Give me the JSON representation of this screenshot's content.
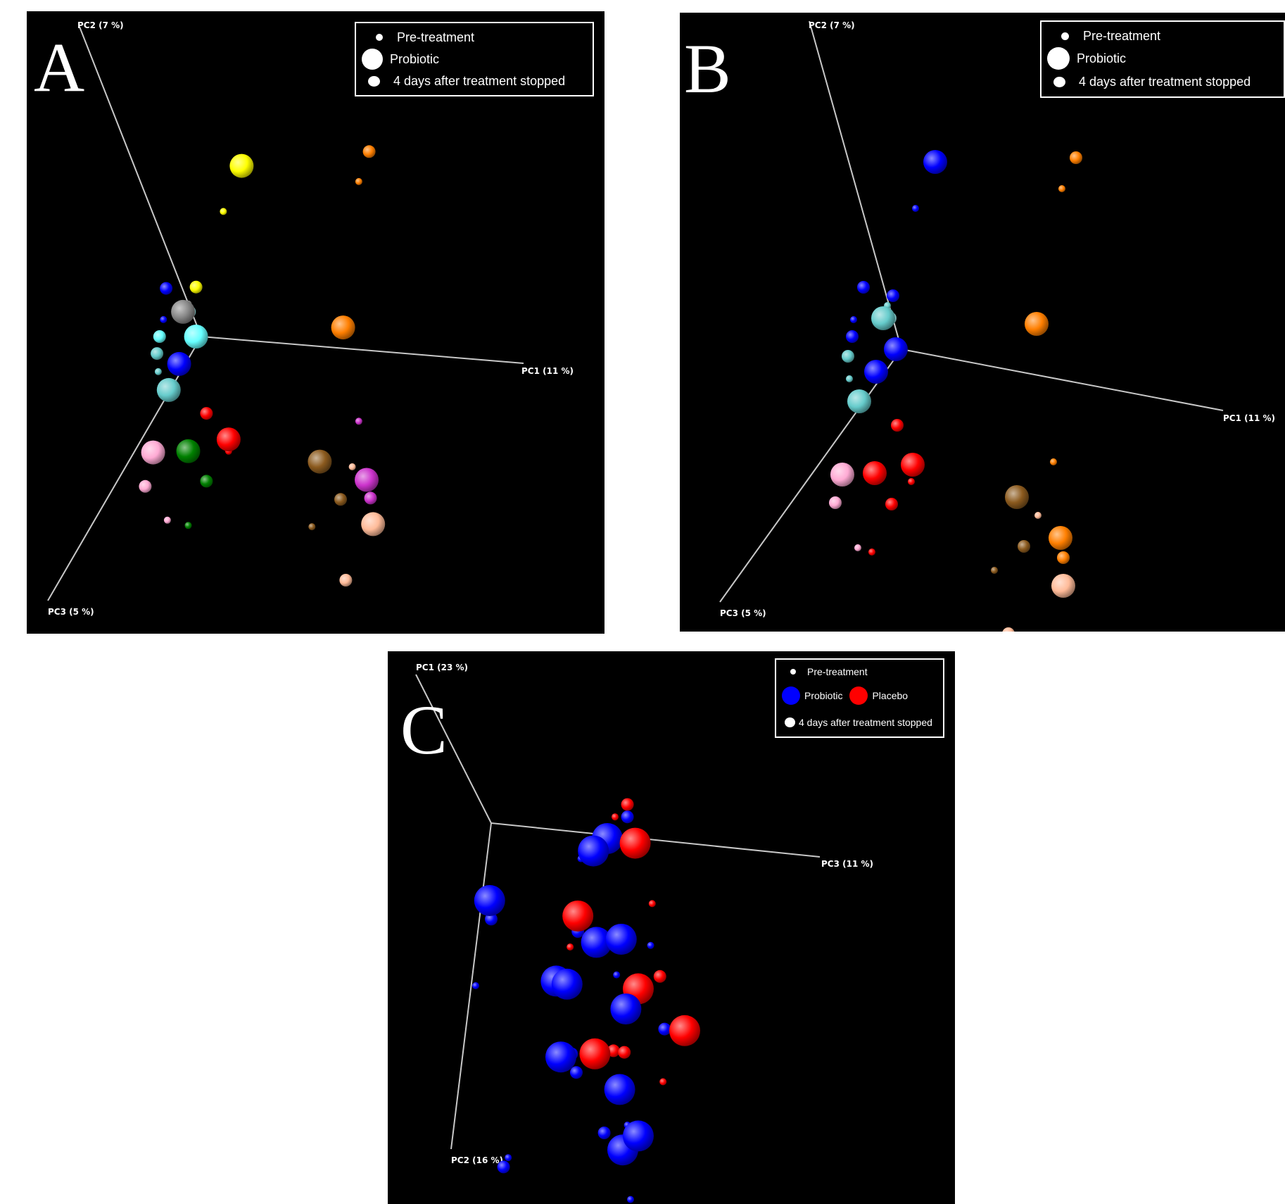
{
  "panels": [
    {
      "letter": "A",
      "legend": [
        "Pre-treatment",
        "Probiotic",
        "4 days after treatment stopped"
      ],
      "axes": {
        "x": "PC1 (11 %)",
        "y": "PC2 (7 %)",
        "z": "PC3 (5 %)"
      }
    },
    {
      "letter": "B",
      "legend": [
        "Pre-treatment",
        "Probiotic",
        "4 days after treatment stopped"
      ],
      "axes": {
        "x": "PC1 (11 %)",
        "y": "PC2 (7 %)",
        "z": "PC3 (5 %)"
      }
    },
    {
      "letter": "C",
      "legend": [
        "Pre-treatment",
        "Probiotic",
        "Placebo",
        "4 days after treatment stopped"
      ],
      "axes": {
        "x": "PC3 (11 %)",
        "y": "PC1 (23 %)",
        "z": "PC2 (16 %)"
      }
    }
  ],
  "chart_data": [
    {
      "type": "scatter",
      "title": "A",
      "projection": "3D PCoA",
      "axes": [
        "PC1 (11 %)",
        "PC2 (7 %)",
        "PC3 (5 %)"
      ],
      "size_encoding": {
        "small": "Pre-treatment",
        "large": "Probiotic",
        "medium": "4 days after treatment stopped"
      },
      "grid": false,
      "legend_position": "top-right",
      "points": [
        {
          "x": 0.31,
          "y": 1.31,
          "s": 3,
          "c": "#ffff00"
        },
        {
          "x": 0.17,
          "y": 0.96,
          "s": 1,
          "c": "#ffff00"
        },
        {
          "x": -0.04,
          "y": 0.38,
          "s": 2,
          "c": "#ffff00"
        },
        {
          "x": 1.29,
          "y": 1.42,
          "s": 2,
          "c": "#ff7f00"
        },
        {
          "x": 1.21,
          "y": 1.19,
          "s": 1,
          "c": "#ff7f00"
        },
        {
          "x": 1.09,
          "y": 0.07,
          "s": 3,
          "c": "#ff7f00"
        },
        {
          "x": -0.27,
          "y": 0.37,
          "s": 2,
          "c": "#0000ff"
        },
        {
          "x": -0.29,
          "y": 0.13,
          "s": 1,
          "c": "#0000ff"
        },
        {
          "x": -0.17,
          "y": -0.21,
          "s": 3,
          "c": "#0000ff"
        },
        {
          "x": -0.14,
          "y": 0.19,
          "s": 3,
          "c": "#888888"
        },
        {
          "x": -0.1,
          "y": 0.25,
          "s": 1,
          "c": "#888888"
        },
        {
          "x": -0.09,
          "y": 0.19,
          "s": 2,
          "c": "#aaffff"
        },
        {
          "x": -0.04,
          "y": 0.0,
          "s": 3,
          "c": "#66ffff"
        },
        {
          "x": -0.32,
          "y": 0.0,
          "s": 2,
          "c": "#66ffff"
        },
        {
          "x": -0.34,
          "y": -0.13,
          "s": 2,
          "c": "#66cccc"
        },
        {
          "x": -0.33,
          "y": -0.27,
          "s": 1,
          "c": "#66cccc"
        },
        {
          "x": -0.25,
          "y": -0.41,
          "s": 3,
          "c": "#66cccc"
        },
        {
          "x": 0.04,
          "y": -0.59,
          "s": 2,
          "c": "#ff0000"
        },
        {
          "x": 0.21,
          "y": -0.79,
          "s": 3,
          "c": "#ff0000"
        },
        {
          "x": 0.21,
          "y": -0.88,
          "s": 1,
          "c": "#ff0000"
        },
        {
          "x": -0.1,
          "y": -0.88,
          "s": 3,
          "c": "#008000"
        },
        {
          "x": 0.04,
          "y": -1.11,
          "s": 2,
          "c": "#008000"
        },
        {
          "x": -0.1,
          "y": -1.45,
          "s": 1,
          "c": "#008000"
        },
        {
          "x": -0.37,
          "y": -0.89,
          "s": 3,
          "c": "#ffaad4"
        },
        {
          "x": -0.43,
          "y": -1.15,
          "s": 2,
          "c": "#ffaad4"
        },
        {
          "x": -0.26,
          "y": -1.41,
          "s": 1,
          "c": "#ffaad4"
        },
        {
          "x": 0.91,
          "y": -0.96,
          "s": 3,
          "c": "#8b5a1e"
        },
        {
          "x": 1.07,
          "y": -1.25,
          "s": 2,
          "c": "#8b5a1e"
        },
        {
          "x": 0.85,
          "y": -1.46,
          "s": 1,
          "c": "#8b5a1e"
        },
        {
          "x": 1.21,
          "y": -0.65,
          "s": 1,
          "c": "#cc33cc"
        },
        {
          "x": 1.27,
          "y": -1.1,
          "s": 3,
          "c": "#cc33cc"
        },
        {
          "x": 1.3,
          "y": -1.24,
          "s": 2,
          "c": "#cc33cc"
        },
        {
          "x": 1.16,
          "y": -1.0,
          "s": 1,
          "c": "#ffbb99"
        },
        {
          "x": 1.32,
          "y": -1.44,
          "s": 3,
          "c": "#ffbb99"
        },
        {
          "x": 1.11,
          "y": -1.87,
          "s": 2,
          "c": "#ffbb99"
        }
      ]
    },
    {
      "type": "scatter",
      "title": "B",
      "projection": "3D PCoA",
      "axes": [
        "PC1 (11 %)",
        "PC2 (7 %)",
        "PC3 (5 %)"
      ],
      "size_encoding": {
        "small": "Pre-treatment",
        "large": "Probiotic",
        "medium": "4 days after treatment stopped"
      },
      "grid": false,
      "legend_position": "top-right",
      "points": [
        {
          "x": 0.24,
          "y": 1.33,
          "s": 3,
          "c": "#0000ff"
        },
        {
          "x": 0.1,
          "y": 1.0,
          "s": 1,
          "c": "#0000ff"
        },
        {
          "x": -0.27,
          "y": 0.44,
          "s": 2,
          "c": "#0000ff"
        },
        {
          "x": -0.06,
          "y": 0.38,
          "s": 2,
          "c": "#0000ff"
        },
        {
          "x": -0.34,
          "y": 0.21,
          "s": 1,
          "c": "#0000ff"
        },
        {
          "x": -0.35,
          "y": 0.09,
          "s": 2,
          "c": "#0000ff"
        },
        {
          "x": -0.18,
          "y": -0.16,
          "s": 3,
          "c": "#0000ff"
        },
        {
          "x": -0.04,
          "y": 0.0,
          "s": 3,
          "c": "#0000ff"
        },
        {
          "x": -0.13,
          "y": 0.22,
          "s": 3,
          "c": "#66cccc"
        },
        {
          "x": -0.1,
          "y": 0.31,
          "s": 1,
          "c": "#66cccc"
        },
        {
          "x": -0.08,
          "y": 0.22,
          "s": 2,
          "c": "#aaffff"
        },
        {
          "x": -0.38,
          "y": -0.05,
          "s": 2,
          "c": "#66cccc"
        },
        {
          "x": -0.37,
          "y": -0.21,
          "s": 1,
          "c": "#66cccc"
        },
        {
          "x": -0.3,
          "y": -0.37,
          "s": 3,
          "c": "#66cccc"
        },
        {
          "x": 1.24,
          "y": 1.36,
          "s": 2,
          "c": "#ff7f00"
        },
        {
          "x": 1.14,
          "y": 1.14,
          "s": 1,
          "c": "#ff7f00"
        },
        {
          "x": 0.96,
          "y": 0.18,
          "s": 3,
          "c": "#ff7f00"
        },
        {
          "x": -0.03,
          "y": -0.54,
          "s": 2,
          "c": "#ff0000"
        },
        {
          "x": 0.08,
          "y": -0.82,
          "s": 3,
          "c": "#ff0000"
        },
        {
          "x": 0.07,
          "y": -0.94,
          "s": 1,
          "c": "#ff0000"
        },
        {
          "x": -0.19,
          "y": -0.88,
          "s": 3,
          "c": "#ff0000"
        },
        {
          "x": -0.07,
          "y": -1.1,
          "s": 2,
          "c": "#ff0000"
        },
        {
          "x": -0.21,
          "y": -1.44,
          "s": 1,
          "c": "#ff0000"
        },
        {
          "x": -0.42,
          "y": -0.89,
          "s": 3,
          "c": "#ffaad4"
        },
        {
          "x": -0.47,
          "y": -1.09,
          "s": 2,
          "c": "#ffaad4"
        },
        {
          "x": -0.31,
          "y": -1.41,
          "s": 1,
          "c": "#ffaad4"
        },
        {
          "x": 0.82,
          "y": -1.05,
          "s": 3,
          "c": "#8b5a1e"
        },
        {
          "x": 0.87,
          "y": -1.4,
          "s": 2,
          "c": "#8b5a1e"
        },
        {
          "x": 0.66,
          "y": -1.57,
          "s": 1,
          "c": "#8b5a1e"
        },
        {
          "x": 1.08,
          "y": -0.8,
          "s": 1,
          "c": "#ff7f00"
        },
        {
          "x": 1.13,
          "y": -1.34,
          "s": 3,
          "c": "#ff7f00"
        },
        {
          "x": 1.15,
          "y": -1.48,
          "s": 2,
          "c": "#ff7f00"
        },
        {
          "x": 0.97,
          "y": -1.18,
          "s": 1,
          "c": "#ffbb99"
        },
        {
          "x": 1.15,
          "y": -1.68,
          "s": 3,
          "c": "#ffbb99"
        },
        {
          "x": 0.76,
          "y": -2.02,
          "s": 2,
          "c": "#ffbb99"
        }
      ]
    },
    {
      "type": "scatter",
      "title": "C",
      "projection": "3D PCoA",
      "axes": [
        "PC3 (11 %)",
        "PC1 (23 %)",
        "PC2 (16 %)"
      ],
      "groups": [
        "Probiotic",
        "Placebo"
      ],
      "size_encoding": {
        "small": "Pre-treatment",
        "large": "Probiotic / Placebo",
        "medium": "4 days after treatment stopped"
      },
      "grid": false,
      "legend_position": "top-right",
      "points": [
        {
          "x": -0.01,
          "y": -0.5,
          "s": 3,
          "c": "#0000ff"
        },
        {
          "x": 0.0,
          "y": -0.62,
          "s": 2,
          "c": "#0000ff"
        },
        {
          "x": -0.1,
          "y": -1.05,
          "s": 1,
          "c": "#0000ff"
        },
        {
          "x": 0.88,
          "y": 0.12,
          "s": 2,
          "c": "#ff0000"
        },
        {
          "x": 0.8,
          "y": 0.04,
          "s": 1,
          "c": "#ff0000"
        },
        {
          "x": 0.88,
          "y": 0.04,
          "s": 2,
          "c": "#0000ff"
        },
        {
          "x": 0.75,
          "y": -0.1,
          "s": 3,
          "c": "#0000ff"
        },
        {
          "x": 0.93,
          "y": -0.13,
          "s": 3,
          "c": "#ff0000"
        },
        {
          "x": 0.66,
          "y": -0.18,
          "s": 3,
          "c": "#0000ff"
        },
        {
          "x": 0.58,
          "y": -0.23,
          "s": 1,
          "c": "#0000ff"
        },
        {
          "x": 0.56,
          "y": -0.6,
          "s": 3,
          "c": "#ff0000"
        },
        {
          "x": 0.56,
          "y": -0.7,
          "s": 2,
          "c": "#0000ff"
        },
        {
          "x": 0.51,
          "y": -0.8,
          "s": 1,
          "c": "#ff0000"
        },
        {
          "x": 0.68,
          "y": -0.77,
          "s": 3,
          "c": "#0000ff"
        },
        {
          "x": 0.84,
          "y": -0.75,
          "s": 3,
          "c": "#0000ff"
        },
        {
          "x": 1.04,
          "y": -0.52,
          "s": 1,
          "c": "#ff0000"
        },
        {
          "x": 1.03,
          "y": -0.79,
          "s": 1,
          "c": "#0000ff"
        },
        {
          "x": 0.42,
          "y": -1.02,
          "s": 3,
          "c": "#0000ff"
        },
        {
          "x": 0.49,
          "y": -1.04,
          "s": 3,
          "c": "#0000ff"
        },
        {
          "x": 0.81,
          "y": -0.98,
          "s": 1,
          "c": "#0000ff"
        },
        {
          "x": 0.95,
          "y": -1.07,
          "s": 3,
          "c": "#ff0000"
        },
        {
          "x": 0.87,
          "y": -1.2,
          "s": 3,
          "c": "#0000ff"
        },
        {
          "x": 1.09,
          "y": -0.99,
          "s": 2,
          "c": "#ff0000"
        },
        {
          "x": 1.25,
          "y": -1.34,
          "s": 3,
          "c": "#ff0000"
        },
        {
          "x": 1.12,
          "y": -1.33,
          "s": 2,
          "c": "#0000ff"
        },
        {
          "x": 0.45,
          "y": -1.51,
          "s": 3,
          "c": "#0000ff"
        },
        {
          "x": 0.52,
          "y": -1.49,
          "s": 2,
          "c": "#0000ff"
        },
        {
          "x": 0.67,
          "y": -1.49,
          "s": 3,
          "c": "#ff0000"
        },
        {
          "x": 0.79,
          "y": -1.47,
          "s": 2,
          "c": "#ff0000"
        },
        {
          "x": 0.86,
          "y": -1.48,
          "s": 2,
          "c": "#ff0000"
        },
        {
          "x": 0.55,
          "y": -1.61,
          "s": 2,
          "c": "#0000ff"
        },
        {
          "x": 0.83,
          "y": -1.72,
          "s": 3,
          "c": "#0000ff"
        },
        {
          "x": 1.11,
          "y": -1.67,
          "s": 1,
          "c": "#ff0000"
        },
        {
          "x": 0.73,
          "y": -2.0,
          "s": 2,
          "c": "#0000ff"
        },
        {
          "x": 0.85,
          "y": -2.11,
          "s": 3,
          "c": "#0000ff"
        },
        {
          "x": 0.95,
          "y": -2.02,
          "s": 3,
          "c": "#0000ff"
        },
        {
          "x": 0.88,
          "y": -1.95,
          "s": 1,
          "c": "#0000ff"
        },
        {
          "x": 0.08,
          "y": -2.22,
          "s": 2,
          "c": "#0000ff"
        },
        {
          "x": 0.11,
          "y": -2.16,
          "s": 1,
          "c": "#0000ff"
        },
        {
          "x": 0.73,
          "y": -2.53,
          "s": 2,
          "c": "#0000ff"
        },
        {
          "x": 0.9,
          "y": -2.43,
          "s": 1,
          "c": "#0000ff"
        },
        {
          "x": 0.94,
          "y": -2.55,
          "s": 1,
          "c": "#0000ff"
        }
      ]
    }
  ]
}
